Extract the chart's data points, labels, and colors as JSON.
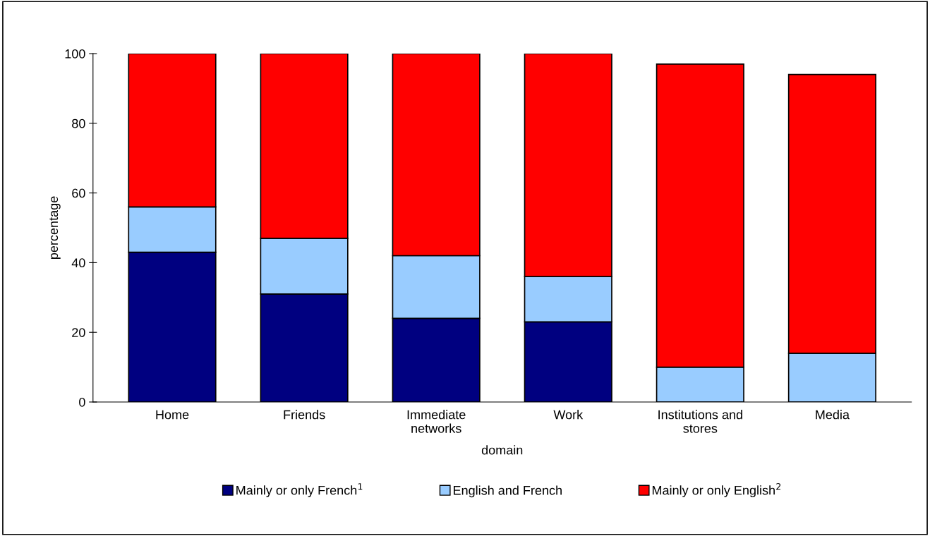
{
  "chart_data": {
    "type": "bar",
    "stacked": true,
    "xlabel": "domain",
    "ylabel": "percentage",
    "categories": [
      "Home",
      "Friends",
      "Immediate\nnetworks",
      "Work",
      "Institutions and\nstores",
      "Media"
    ],
    "series": [
      {
        "name": "Mainly or only French$^{1}$",
        "color": "#000080",
        "values": [
          43,
          31,
          24,
          23,
          0,
          0
        ]
      },
      {
        "name": "English and French",
        "color": "#99ccff",
        "values": [
          13,
          16,
          18,
          13,
          10,
          14
        ]
      },
      {
        "name": "Mainly or only English$^{2}$",
        "color": "#ff0000",
        "values": [
          44,
          53,
          58,
          64,
          87,
          80
        ]
      }
    ],
    "ylim": [
      0,
      100
    ],
    "yticks": [
      0,
      20,
      40,
      60,
      80,
      100
    ],
    "grid": false,
    "legend": "bottom"
  }
}
